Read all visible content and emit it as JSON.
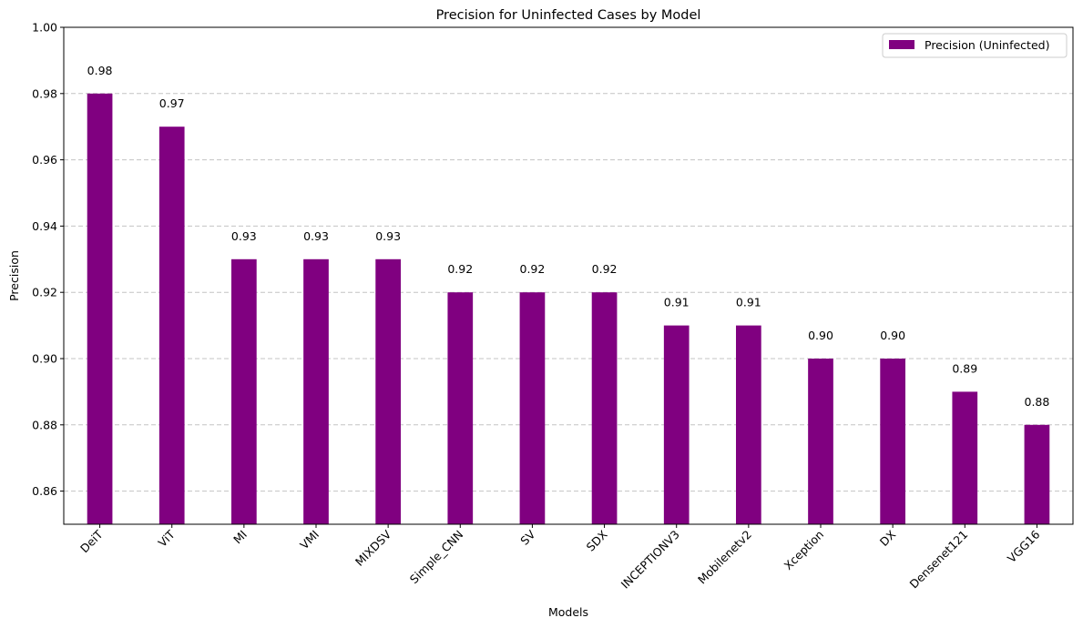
{
  "chart_data": {
    "type": "bar",
    "title": "Precision for Uninfected Cases by Model",
    "xlabel": "Models",
    "ylabel": "Precision",
    "ylim": [
      0.85,
      1.0
    ],
    "yticks": [
      0.86,
      0.88,
      0.9,
      0.92,
      0.94,
      0.96,
      0.98,
      1.0
    ],
    "grid": "y-dashed",
    "legend_position": "top-right",
    "categories": [
      "DeiT",
      "ViT",
      "MI",
      "VMI",
      "MIXDSV",
      "Simple_CNN",
      "SV",
      "SDX",
      "INCEPTIONV3",
      "Mobilenetv2",
      "Xception",
      "DX",
      "Densenet121",
      "VGG16"
    ],
    "series": [
      {
        "name": "Precision (Uninfected)",
        "color": "#800080",
        "values": [
          0.98,
          0.97,
          0.93,
          0.93,
          0.93,
          0.92,
          0.92,
          0.92,
          0.91,
          0.91,
          0.9,
          0.9,
          0.89,
          0.88
        ]
      }
    ]
  }
}
